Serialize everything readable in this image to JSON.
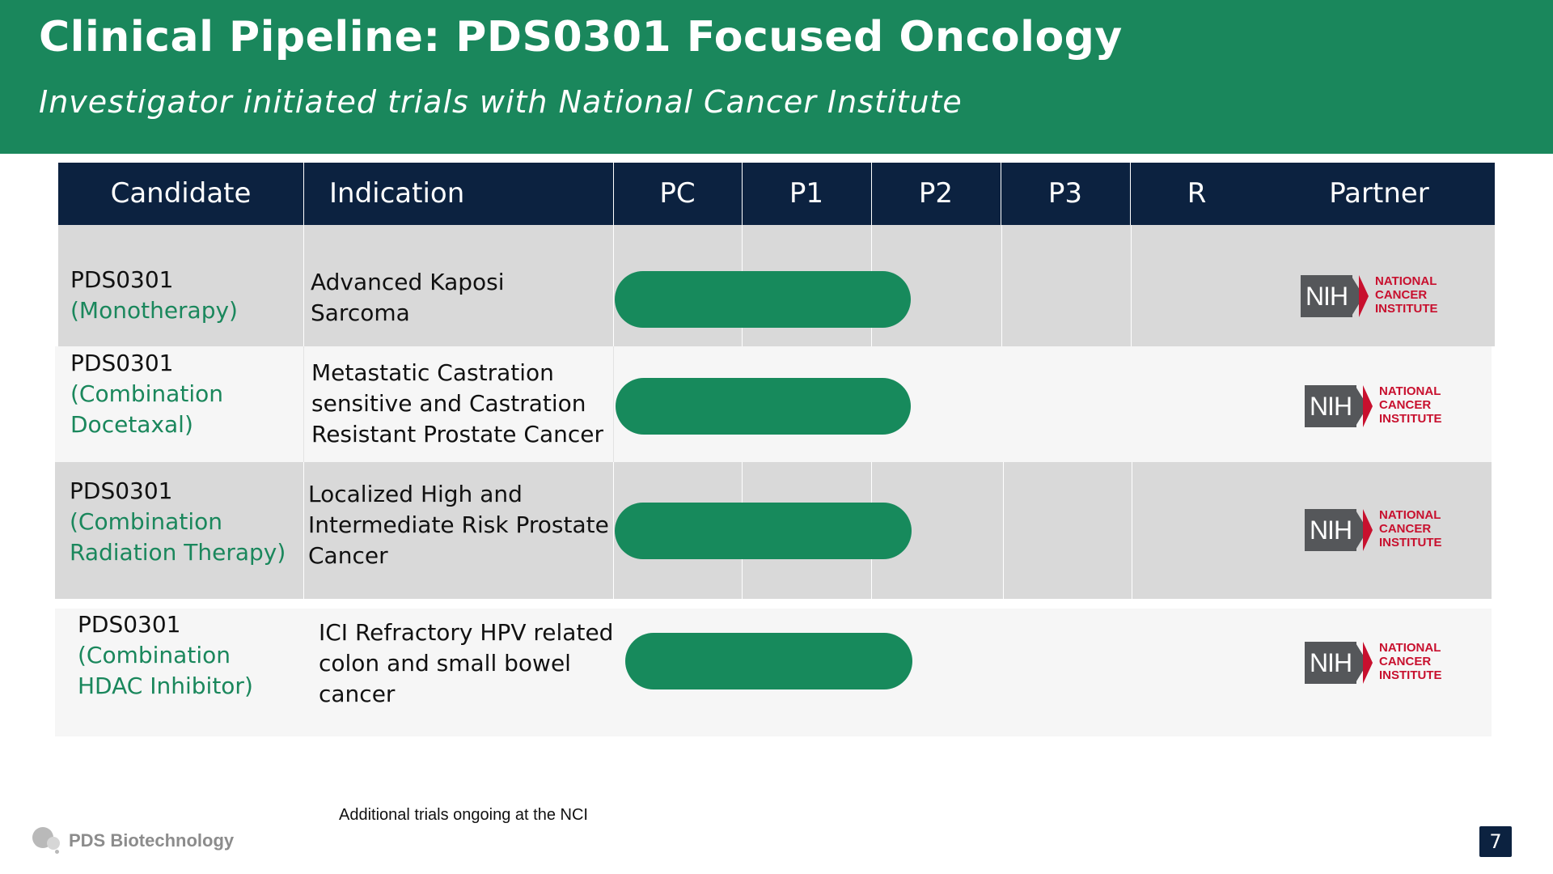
{
  "header": {
    "title": "Clinical Pipeline: PDS0301 Focused Oncology",
    "subtitle": "Investigator initiated trials with National Cancer Institute"
  },
  "table": {
    "columns": [
      "Candidate",
      "Indication",
      "PC",
      "P1",
      "P2",
      "P3",
      "R",
      "Partner"
    ],
    "rows": [
      {
        "candidate": "PDS0301",
        "candidate_detail": "(Monotherapy)",
        "indication": "Advanced Kaposi Sarcoma",
        "stage_progress": "P2",
        "partner": "NIH NATIONAL CANCER INSTITUTE"
      },
      {
        "candidate": "PDS0301",
        "candidate_detail": "(Combination Docetaxal)",
        "indication": "Metastatic Castration sensitive  and Castration Resistant Prostate Cancer",
        "stage_progress": "P2",
        "partner": "NIH NATIONAL CANCER INSTITUTE"
      },
      {
        "candidate": "PDS0301",
        "candidate_detail": "(Combination Radiation Therapy)",
        "indication": "Localized High and Intermediate Risk Prostate Cancer",
        "stage_progress": "P2",
        "partner": "NIH NATIONAL CANCER INSTITUTE"
      },
      {
        "candidate": "PDS0301",
        "candidate_detail": "(Combination HDAC Inhibitor)",
        "indication": "ICI Refractory HPV related colon and small bowel cancer",
        "stage_progress": "P2",
        "partner": "NIH NATIONAL CANCER INSTITUTE"
      }
    ]
  },
  "partner_logo": {
    "nih": "NIH",
    "line1": "NATIONAL",
    "line2": "CANCER",
    "line3": "INSTITUTE"
  },
  "footnote": "Additional trials ongoing at the NCI",
  "company": "PDS Biotechnology",
  "page_number": "7",
  "colors": {
    "header_green": "#1a875c",
    "bar_green": "#178a5c",
    "table_header_navy": "#0c2240",
    "row_gray": "#d9d9d9",
    "row_light": "#f6f6f6",
    "nci_red": "#c8102e",
    "nih_gray": "#55575a"
  }
}
